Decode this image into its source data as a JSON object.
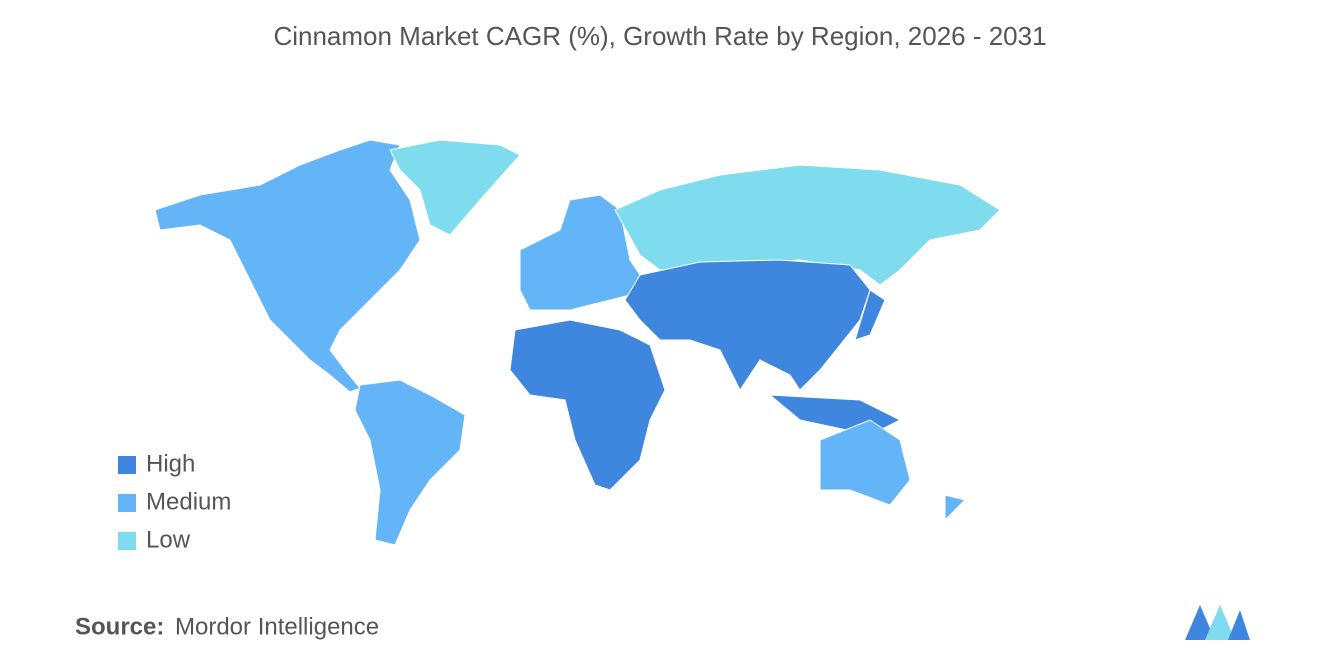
{
  "header": {
    "title": "Cinnamon Market CAGR (%), Growth Rate by Region, 2026 - 2031"
  },
  "legend": [
    {
      "label": "High",
      "color": "#3f87de"
    },
    {
      "label": "Medium",
      "color": "#64b5f7"
    },
    {
      "label": "Low",
      "color": "#7fdcef"
    }
  ],
  "footer": {
    "source_label": "Source:",
    "source": "Mordor Intelligence"
  }
}
